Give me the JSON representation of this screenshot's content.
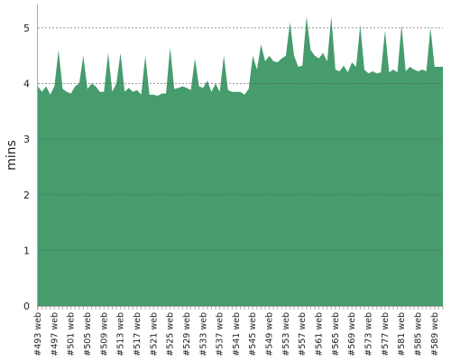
{
  "chart_data": {
    "type": "area",
    "y_label": "mins",
    "color": "#469c6d",
    "grid": true,
    "ylim": [
      0,
      5.42
    ],
    "yticks": [
      0,
      1,
      2,
      3,
      4,
      5
    ],
    "categories": [
      "#493 web",
      null,
      null,
      null,
      "#497 web",
      null,
      null,
      null,
      "#501 web",
      null,
      null,
      null,
      "#505 web",
      null,
      null,
      null,
      "#509 web",
      null,
      null,
      null,
      "#513 web",
      null,
      null,
      null,
      "#517 web",
      null,
      null,
      null,
      "#521 web",
      null,
      null,
      null,
      "#525 web",
      null,
      null,
      null,
      "#529 web",
      null,
      null,
      null,
      "#533 web",
      null,
      null,
      null,
      "#537 web",
      null,
      null,
      null,
      "#541 web",
      null,
      null,
      null,
      "#545 web",
      null,
      null,
      null,
      "#549 web",
      null,
      null,
      null,
      "#553 web",
      null,
      null,
      null,
      "#557 web",
      null,
      null,
      null,
      "#561 web",
      null,
      null,
      null,
      "#565 web",
      null,
      null,
      null,
      "#569 web",
      null,
      null,
      null,
      "#573 web",
      null,
      null,
      null,
      "#577 web",
      null,
      null,
      null,
      "#581 web",
      null,
      null,
      null,
      "#585 web",
      null,
      null,
      null,
      "#589 web",
      null,
      null
    ],
    "values": [
      3.95,
      3.85,
      3.95,
      3.8,
      3.95,
      4.6,
      3.9,
      3.85,
      3.82,
      3.95,
      4.0,
      4.5,
      3.9,
      4.0,
      3.95,
      3.85,
      3.85,
      4.55,
      3.85,
      4.0,
      4.55,
      3.85,
      3.92,
      3.85,
      3.88,
      3.8,
      4.5,
      3.8,
      3.8,
      3.78,
      3.82,
      3.82,
      4.65,
      3.9,
      3.92,
      3.95,
      3.92,
      3.88,
      4.45,
      3.95,
      3.92,
      4.05,
      3.85,
      4.0,
      3.85,
      4.5,
      3.88,
      3.85,
      3.85,
      3.85,
      3.8,
      3.9,
      4.5,
      4.25,
      4.7,
      4.4,
      4.5,
      4.4,
      4.38,
      4.45,
      4.5,
      5.1,
      4.5,
      4.3,
      4.32,
      5.2,
      4.6,
      4.5,
      4.45,
      4.55,
      4.4,
      5.2,
      4.25,
      4.22,
      4.32,
      4.2,
      4.38,
      4.3,
      5.05,
      4.25,
      4.18,
      4.22,
      4.18,
      4.2,
      4.95,
      4.2,
      4.25,
      4.2,
      5.05,
      4.22,
      4.3,
      4.25,
      4.22,
      4.25,
      4.22,
      5.0,
      4.3,
      4.3,
      4.3
    ]
  }
}
